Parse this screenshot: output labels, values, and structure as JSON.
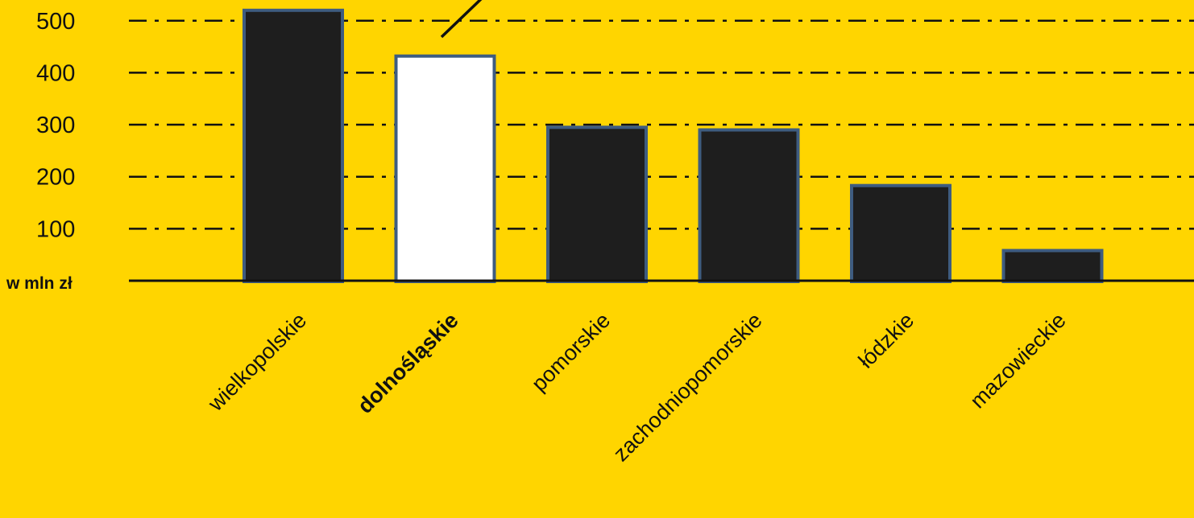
{
  "colors": {
    "background": "#FFD500",
    "bar_fill": "#1E1E1E",
    "bar_highlight_fill": "#FFFFFF",
    "bar_stroke": "#3E5C80",
    "grid": "#111111"
  },
  "chart_data": {
    "type": "bar",
    "title": "",
    "xlabel": "",
    "ylabel": "w mln zł",
    "ylim": [
      0,
      540
    ],
    "yticks": [
      100,
      200,
      300,
      400,
      500
    ],
    "grid": "horizontal dash-dot",
    "categories": [
      "wielkopolskie",
      "dolnośląskie",
      "pomorskie",
      "zachodniopomorskie",
      "łódzkie",
      "mazowieckie"
    ],
    "values": [
      520,
      432,
      295,
      290,
      183,
      58
    ],
    "highlight": "dolnośląskie",
    "annotation": "pointer line toward dolnośląskie bar (label cropped above frame)"
  }
}
